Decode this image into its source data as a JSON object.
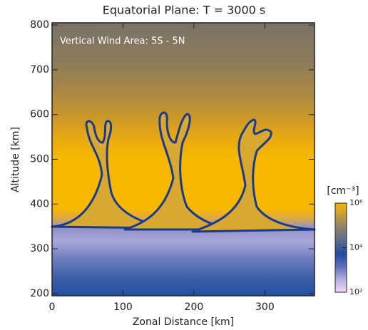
{
  "chart_data": {
    "type": "contour",
    "title": "Equatorial Plane: T =  3000 s",
    "annotation": "Vertical Wind Area: 5S - 5N",
    "x_label": "Zonal Distance [km]",
    "y_label": "Altitude [km]",
    "xlim": [
      0,
      370
    ],
    "ylim": [
      195,
      805
    ],
    "xticks": [
      0,
      100,
      200,
      300
    ],
    "yticks": [
      200,
      300,
      400,
      500,
      600,
      700,
      800
    ],
    "colorbar": {
      "label": "[cm⁻³]",
      "log_scale": true,
      "clim": [
        100,
        1000000
      ],
      "ticks": [
        {
          "value": 100,
          "label": "10²"
        },
        {
          "value": 10000,
          "label": "10⁴"
        },
        {
          "value": 1000000,
          "label": "10⁶"
        }
      ],
      "colors": [
        "#f2d8f2",
        "#b0b0e0",
        "#6070b8",
        "#1f4aa0",
        "#5a6a90",
        "#8a8070",
        "#c09a40",
        "#f8b800"
      ]
    }
  }
}
